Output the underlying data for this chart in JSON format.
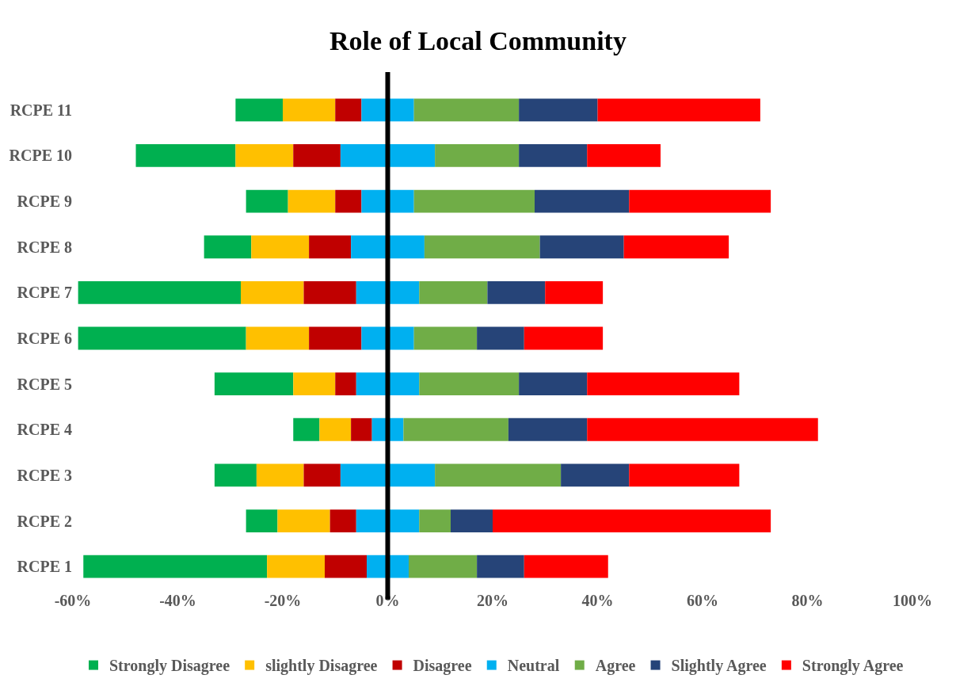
{
  "chart_data": {
    "type": "bar",
    "orientation": "horizontal",
    "title": "Role of Local Community",
    "categories": [
      "RCPE 11",
      "RCPE 10",
      "RCPE 9",
      "RCPE 8",
      "RCPE 7",
      "RCPE 6",
      "RCPE 5",
      "RCPE 4",
      "RCPE 3",
      "RCPE 2",
      "RCPE 1"
    ],
    "series": [
      {
        "name": "Strongly Disagree",
        "color": "#00b050",
        "base": [
          -29,
          -48,
          -27,
          -35,
          -59,
          -59,
          -33,
          -18,
          -33,
          -27,
          -58
        ],
        "values": [
          9,
          19,
          8,
          9,
          31,
          32,
          15,
          5,
          8,
          6,
          35
        ]
      },
      {
        "name": "slightly Disagree",
        "color": "#ffc000",
        "base": [
          -20,
          -29,
          -19,
          -26,
          -28,
          -27,
          -18,
          -13,
          -25,
          -21,
          -23
        ],
        "values": [
          10,
          11,
          9,
          11,
          12,
          12,
          8,
          6,
          9,
          10,
          11
        ]
      },
      {
        "name": "Disagree",
        "color": "#c00000",
        "base": [
          -10,
          -18,
          -10,
          -15,
          -16,
          -15,
          -10,
          -7,
          -16,
          -11,
          -12
        ],
        "values": [
          5,
          9,
          5,
          8,
          10,
          10,
          4,
          4,
          7,
          5,
          8
        ]
      },
      {
        "name": "Neutral",
        "color": "#00b0f0",
        "base": [
          -5,
          -9,
          -5,
          -7,
          -6,
          -5,
          -6,
          -3,
          -9,
          -6,
          -4
        ],
        "values": [
          10,
          18,
          10,
          14,
          12,
          10,
          12,
          6,
          18,
          12,
          8
        ]
      },
      {
        "name": "Agree",
        "color": "#70ad47",
        "base": [
          5,
          9,
          5,
          7,
          6,
          5,
          6,
          3,
          9,
          6,
          4
        ],
        "values": [
          20,
          16,
          23,
          22,
          13,
          12,
          19,
          20,
          24,
          6,
          13
        ]
      },
      {
        "name": "Slightly Agree",
        "color": "#264478",
        "base": [
          25,
          25,
          28,
          29,
          19,
          17,
          25,
          23,
          33,
          12,
          17
        ],
        "values": [
          15,
          13,
          18,
          16,
          11,
          9,
          13,
          15,
          13,
          8,
          9
        ]
      },
      {
        "name": "Strongly Agree",
        "color": "#ff0000",
        "base": [
          40,
          38,
          46,
          45,
          30,
          26,
          38,
          38,
          46,
          20,
          26
        ],
        "values": [
          31,
          14,
          27,
          20,
          11,
          15,
          29,
          44,
          21,
          53,
          16
        ]
      }
    ],
    "xlim": [
      -60,
      100
    ],
    "xticks": [
      {
        "value": -60,
        "label": "-60%"
      },
      {
        "value": -40,
        "label": "-40%"
      },
      {
        "value": -20,
        "label": "-20%"
      },
      {
        "value": 0,
        "label": "0%"
      },
      {
        "value": 20,
        "label": "20%"
      },
      {
        "value": 40,
        "label": "40%"
      },
      {
        "value": 60,
        "label": "60%"
      },
      {
        "value": 80,
        "label": "80%"
      },
      {
        "value": 100,
        "label": "100%"
      }
    ],
    "ref_lines": [
      {
        "axis": "x",
        "value": 0,
        "color": "#000000"
      }
    ],
    "legend": "bottom"
  }
}
